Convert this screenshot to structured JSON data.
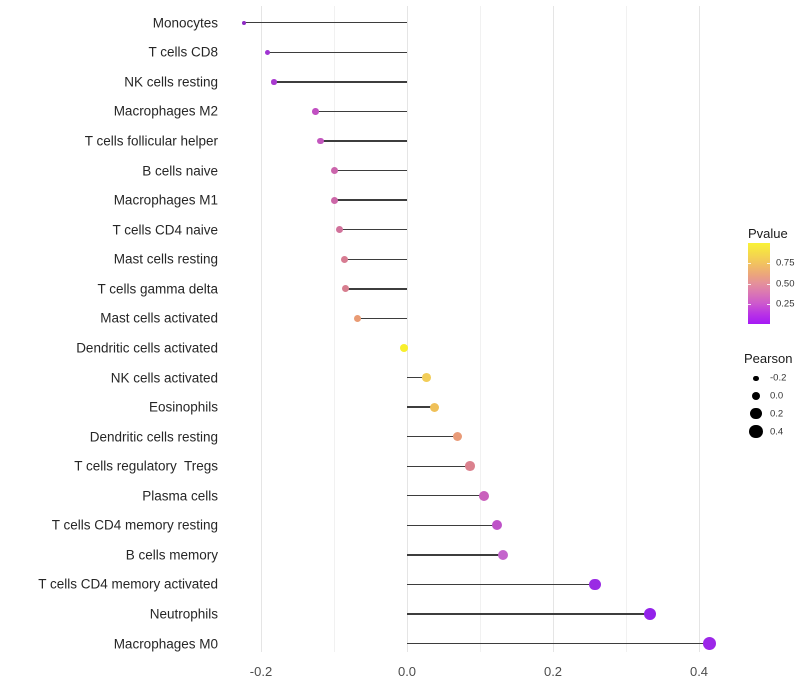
{
  "chart_data": {
    "type": "scatter",
    "variant": "horizontal-lollipop",
    "title": "",
    "xlabel": "",
    "ylabel": "",
    "xlim": [
      -0.25,
      0.45
    ],
    "x_tick_values": [
      -0.2,
      0.0,
      0.2,
      0.4
    ],
    "x_tick_labels": [
      "-0.2",
      "0.0",
      "0.2",
      "0.4"
    ],
    "minor_grid_values": [
      -0.1,
      0.1,
      0.3
    ],
    "grid": "vertical-only",
    "stem_color": "#3d3d3d",
    "categories": [
      "Monocytes",
      "T cells CD8",
      "NK cells resting",
      "Macrophages M2",
      "T cells follicular helper",
      "B cells naive",
      "Macrophages M1",
      "T cells CD4 naive",
      "Mast cells resting",
      "T cells gamma delta",
      "Mast cells activated",
      "Dendritic cells activated",
      "NK cells activated",
      "Eosinophils",
      "Dendritic cells resting",
      "T cells regulatory  Tregs",
      "Plasma cells",
      "T cells CD4 memory resting",
      "B cells memory",
      "T cells CD4 memory activated",
      "Neutrophils",
      "Macrophages M0"
    ],
    "series": [
      {
        "name": "Pearson",
        "points": [
          {
            "label": "Monocytes",
            "pearson": -0.223,
            "color": "#8F2BC4"
          },
          {
            "label": "T cells CD8",
            "pearson": -0.191,
            "color": "#A035D2"
          },
          {
            "label": "NK cells resting",
            "pearson": -0.182,
            "color": "#A93AD0"
          },
          {
            "label": "Macrophages M2",
            "pearson": -0.125,
            "color": "#C150C2"
          },
          {
            "label": "T cells follicular helper",
            "pearson": -0.118,
            "color": "#C357BE"
          },
          {
            "label": "B cells naive",
            "pearson": -0.099,
            "color": "#CB65AC"
          },
          {
            "label": "Macrophages M1",
            "pearson": -0.099,
            "color": "#CC67A8"
          },
          {
            "label": "T cells CD4 naive",
            "pearson": -0.092,
            "color": "#D1729B"
          },
          {
            "label": "Mast cells resting",
            "pearson": -0.086,
            "color": "#D77C92"
          },
          {
            "label": "T cells gamma delta",
            "pearson": -0.084,
            "color": "#D77E8F"
          },
          {
            "label": "Mast cells activated",
            "pearson": -0.068,
            "color": "#E99B74"
          },
          {
            "label": "Dendritic cells activated",
            "pearson": -0.004,
            "color": "#F8EF2C"
          },
          {
            "label": "NK cells activated",
            "pearson": 0.027,
            "color": "#F2CD58"
          },
          {
            "label": "Eosinophils",
            "pearson": 0.038,
            "color": "#EFC058"
          },
          {
            "label": "Dendritic cells resting",
            "pearson": 0.069,
            "color": "#E99B78"
          },
          {
            "label": "T cells regulatory  Tregs",
            "pearson": 0.086,
            "color": "#DB818E"
          },
          {
            "label": "Plasma cells",
            "pearson": 0.106,
            "color": "#C960BC"
          },
          {
            "label": "T cells CD4 memory resting",
            "pearson": 0.123,
            "color": "#BE52C8"
          },
          {
            "label": "B cells memory",
            "pearson": 0.131,
            "color": "#C464CC"
          },
          {
            "label": "T cells CD4 memory activated",
            "pearson": 0.258,
            "color": "#9A2BE4"
          },
          {
            "label": "Neutrophils",
            "pearson": 0.333,
            "color": "#9322EA"
          },
          {
            "label": "Macrophages M0",
            "pearson": 0.414,
            "color": "#9C27E8"
          }
        ]
      }
    ],
    "legends": {
      "pvalue": {
        "title": "Pvalue",
        "type": "colorbar",
        "range": [
          0,
          1
        ],
        "tick_labels": [
          "0.75",
          "0.50",
          "0.25"
        ],
        "tick_fractions_from_top": [
          0.243,
          0.502,
          0.753
        ],
        "gradient_stops": [
          {
            "pos": 0,
            "color": "#F9F236"
          },
          {
            "pos": 12,
            "color": "#F5DC49"
          },
          {
            "pos": 25,
            "color": "#F2C35F"
          },
          {
            "pos": 40,
            "color": "#EBA37E"
          },
          {
            "pos": 50,
            "color": "#E4909B"
          },
          {
            "pos": 62,
            "color": "#DA76B4"
          },
          {
            "pos": 75,
            "color": "#CC58CE"
          },
          {
            "pos": 88,
            "color": "#B832E6"
          },
          {
            "pos": 100,
            "color": "#A519F5"
          }
        ]
      },
      "pearson": {
        "title": "Pearson",
        "type": "size",
        "dot_color": "#000000",
        "entries": [
          {
            "label": "-0.2",
            "value": -0.2
          },
          {
            "label": "0.0",
            "value": 0.0
          },
          {
            "label": "0.2",
            "value": 0.2
          },
          {
            "label": "0.4",
            "value": 0.4
          }
        ]
      }
    }
  }
}
